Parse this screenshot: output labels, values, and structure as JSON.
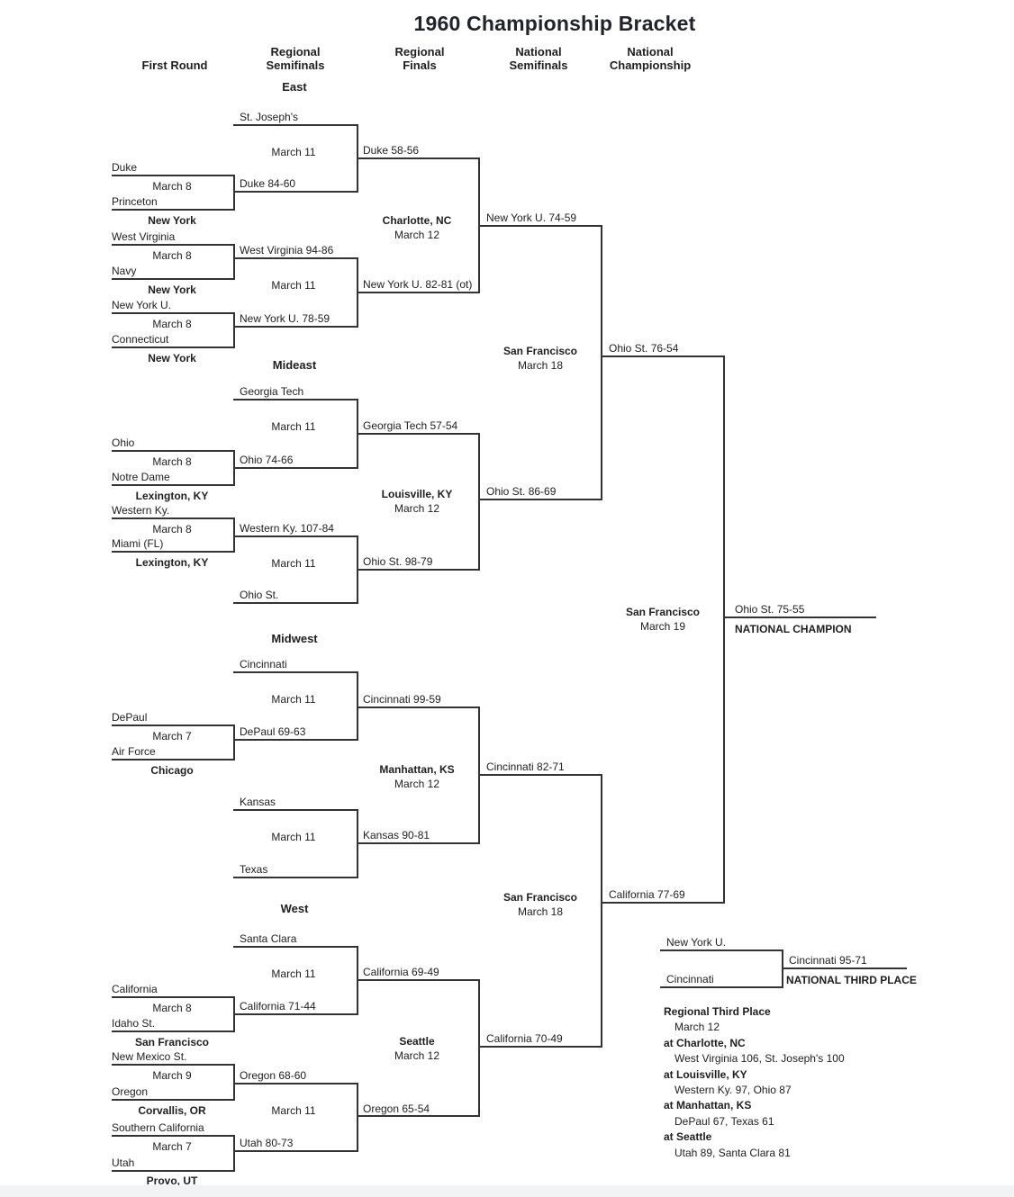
{
  "title": "1960 Championship Bracket",
  "headers": [
    "First Round",
    "Regional Semifinals",
    "Regional Finals",
    "National Semifinals",
    "National Championship"
  ],
  "regions": {
    "east": {
      "label": "East",
      "fr": [
        {
          "team_top": "Duke",
          "team_bottom": "Princeton",
          "date": "March 8",
          "site": "New York"
        },
        {
          "team_top": "West Virginia",
          "team_bottom": "Navy",
          "date": "March 8",
          "site": "New York"
        },
        {
          "team_top": "New York U.",
          "team_bottom": "Connecticut",
          "date": "March 8",
          "site": "New York"
        }
      ],
      "rs": [
        {
          "slot_top": "St. Joseph's",
          "slot_bottom": "Duke 84-60",
          "date": "March 11",
          "winner": "Duke 58-56"
        },
        {
          "slot_top": "West Virginia 94-86",
          "slot_bottom": "New York U. 78-59",
          "date": "March 11",
          "winner": "New York U. 82-81 (ot)"
        }
      ],
      "rf": {
        "site": "Charlotte, NC",
        "date": "March 12",
        "winner": "New York U. 74-59"
      }
    },
    "mideast": {
      "label": "Mideast",
      "fr": [
        {
          "team_top": "Ohio",
          "team_bottom": "Notre Dame",
          "date": "March 8",
          "site": "Lexington, KY"
        },
        {
          "team_top": "Western Ky.",
          "team_bottom": "Miami (FL)",
          "date": "March 8",
          "site": "Lexington, KY"
        }
      ],
      "rs": [
        {
          "slot_top": "Georgia Tech",
          "slot_bottom": "Ohio 74-66",
          "date": "March 11",
          "winner": "Georgia Tech 57-54"
        },
        {
          "slot_top": "Western Ky. 107-84",
          "slot_bottom": "Ohio St.",
          "date": "March 11",
          "winner": "Ohio St. 98-79"
        }
      ],
      "rf": {
        "site": "Louisville, KY",
        "date": "March 12",
        "winner": "Ohio St. 86-69"
      }
    },
    "midwest": {
      "label": "Midwest",
      "fr": [
        {
          "team_top": "DePaul",
          "team_bottom": "Air Force",
          "date": "March 7",
          "site": "Chicago"
        }
      ],
      "rs": [
        {
          "slot_top": "Cincinnati",
          "slot_bottom": "DePaul 69-63",
          "date": "March 11",
          "winner": "Cincinnati 99-59"
        },
        {
          "slot_top": "Kansas",
          "slot_bottom": "Texas",
          "date": "March 11",
          "winner": "Kansas 90-81"
        }
      ],
      "rf": {
        "site": "Manhattan, KS",
        "date": "March 12",
        "winner": "Cincinnati 82-71"
      }
    },
    "west": {
      "label": "West",
      "fr": [
        {
          "team_top": "California",
          "team_bottom": "Idaho St.",
          "date": "March 8",
          "site": "San Francisco"
        },
        {
          "team_top": "New Mexico St.",
          "team_bottom": "Oregon",
          "date": "March 9",
          "site": "Corvallis, OR"
        },
        {
          "team_top": "Southern California",
          "team_bottom": "Utah",
          "date": "March 7",
          "site": "Provo, UT"
        }
      ],
      "rs": [
        {
          "slot_top": "Santa Clara",
          "slot_bottom": "California 71-44",
          "date": "March 11",
          "winner": "California 69-49"
        },
        {
          "slot_top": "Oregon 68-60",
          "slot_bottom": "Utah 80-73",
          "date": "March 11",
          "winner": "Oregon 65-54"
        }
      ],
      "rf": {
        "site": "Seattle",
        "date": "March 12",
        "winner": "California 70-49"
      }
    }
  },
  "national_semifinals": [
    {
      "site": "San Francisco",
      "date": "March 18",
      "winner": "Ohio St. 76-54"
    },
    {
      "site": "San Francisco",
      "date": "March 18",
      "winner": "California 77-69"
    }
  ],
  "championship": {
    "site": "San Francisco",
    "date": "March 19",
    "winner": "Ohio St. 75-55",
    "result_label": "NATIONAL CHAMPION"
  },
  "national_third_place": {
    "team_top": "New York U.",
    "team_bottom": "Cincinnati",
    "winner": "Cincinnati 95-71",
    "result_label": "NATIONAL THIRD PLACE"
  },
  "regional_third_place": {
    "heading": "Regional Third Place",
    "date": "March 12",
    "games": [
      {
        "site": "at Charlotte, NC",
        "result": "West Virginia 106, St. Joseph's 100"
      },
      {
        "site": "at Louisville, KY",
        "result": "Western Ky. 97, Ohio 87"
      },
      {
        "site": "at Manhattan, KS",
        "result": "DePaul 67, Texas 61"
      },
      {
        "site": "at Seattle",
        "result": "Utah 89, Santa Clara 81"
      }
    ]
  }
}
